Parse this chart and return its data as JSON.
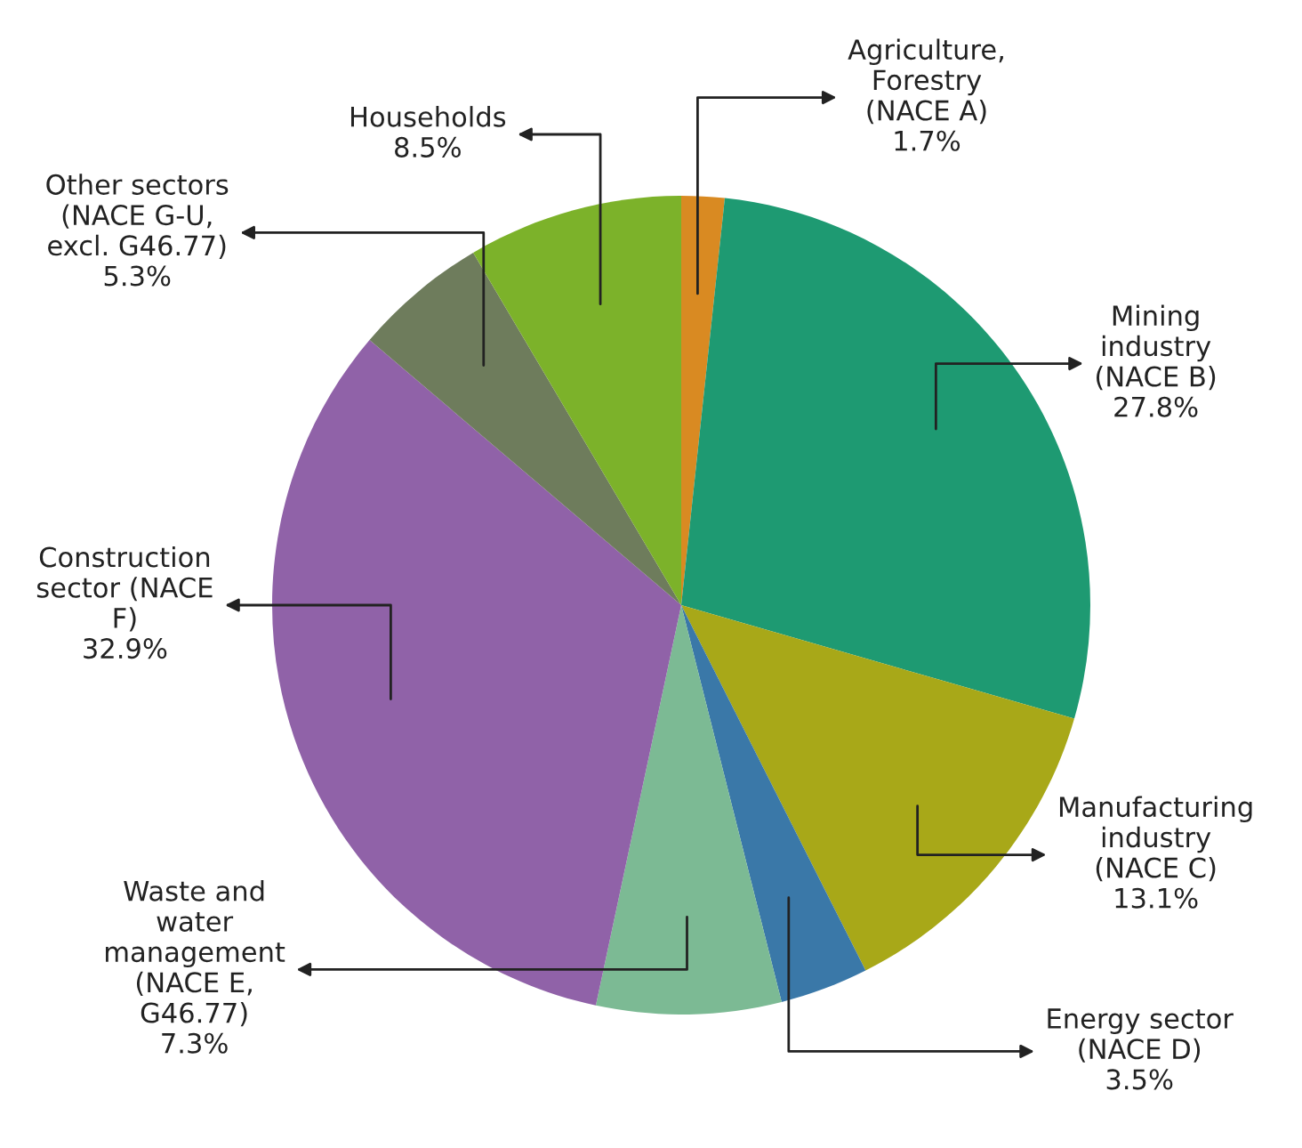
{
  "chart_data": {
    "type": "pie",
    "categories": [
      "Agriculture,\nForestry\n(NACE A)",
      "Mining\nindustry\n(NACE B)",
      "Manufacturing\nindustry\n(NACE C)",
      "Energy sector\n(NACE D)",
      "Waste and\nwater\nmanagement\n(NACE E,\nG46.77)",
      "Construction\nsector (NACE\nF)",
      "Other sectors\n(NACE G-U,\nexcl. G46.77)",
      "Households"
    ],
    "values": [
      1.7,
      27.8,
      13.1,
      3.5,
      7.3,
      32.9,
      5.3,
      8.5
    ],
    "value_labels": [
      "1.7%",
      "27.8%",
      "13.1%",
      "3.5%",
      "7.3%",
      "32.9%",
      "5.3%",
      "8.5%"
    ],
    "colors": [
      "#d98a22",
      "#1e9a72",
      "#a8a818",
      "#3a78a8",
      "#7cba94",
      "#9062a8",
      "#6e7c5c",
      "#7cb22a"
    ],
    "legend": false
  }
}
